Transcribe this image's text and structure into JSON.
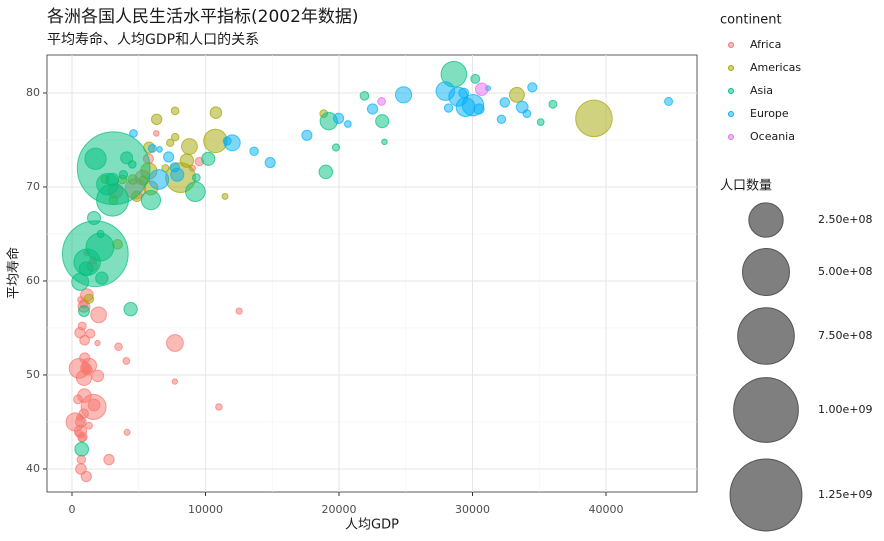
{
  "chart_data": {
    "type": "scatter",
    "title": "各洲各国人民生活水平指标(2002年数据)",
    "subtitle": "平均寿命、人均GDP和人口的关系",
    "x_label": "人均GDP",
    "y_label": "平均寿命",
    "xlim": [
      -1873,
      46816
    ],
    "ylim": [
      37.55,
      84.04
    ],
    "xticks": [
      0,
      10000,
      20000,
      30000,
      40000
    ],
    "yticks": [
      40,
      50,
      60,
      70,
      80
    ],
    "grid": true,
    "legend_title": "continent",
    "size_legend": {
      "title": "人口数量",
      "values": [
        {
          "value": 250000000,
          "label": "2.50e+08"
        },
        {
          "value": 500000000,
          "label": "5.00e+08"
        },
        {
          "value": 750000000,
          "label": "7.50e+08"
        },
        {
          "value": 1000000000,
          "label": "1.00e+09"
        },
        {
          "value": 1250000000,
          "label": "1.25e+09"
        }
      ]
    },
    "series": [
      {
        "name": "Africa",
        "color": "#F8766D",
        "x": [
          1616,
          4755,
          530,
          241,
          7711,
          1993,
          899,
          1288,
          3258,
          5288,
          928,
          1112,
          634,
          894,
          1934,
          1649,
          2773,
          1038,
          672,
          952,
          666,
          601,
          1071,
          1520,
          5723,
          1156,
          882,
          945,
          785,
          1373,
          446,
          699,
          9535,
          886,
          765,
          739,
          531,
          1579,
          4072,
          1275,
          11004,
          12522,
          9022,
          4128,
          7703,
          1908,
          660,
          6316,
          1076,
          3484,
          575
        ],
        "values": [
          46.6,
          69.8,
          50.7,
          45.0,
          53.4,
          56.4,
          49.7,
          51.0,
          69.6,
          71.0,
          47.8,
          58.5,
          44.0,
          57.3,
          49.9,
          46.8,
          41.0,
          50.7,
          40.0,
          51.8,
          45.0,
          54.5,
          39.2,
          61.6,
          73.0,
          50.5,
          45.9,
          53.7,
          43.4,
          54.4,
          47.4,
          41.0,
          72.7,
          57.6,
          55.2,
          43.3,
          43.8,
          62.2,
          51.5,
          44.6,
          46.6,
          56.8,
          72.0,
          43.9,
          49.3,
          53.4,
          58.0,
          75.7,
          63.0,
          53.0,
          45.5
        ],
        "sizes": [
          119901274,
          73312559,
          67946797,
          55379852,
          44433622,
          37090298,
          34593779,
          31386842,
          31167783,
          31287142,
          24739869,
          20550751,
          18473780,
          16473477,
          15929988,
          16252726,
          10866106,
          12251209,
          11926563,
          10580176,
          11824495,
          11140655,
          10595811,
          10870037,
          9770575,
          8835739,
          7753310,
          8807818,
          7852401,
          7026113,
          6071696,
          5359092,
          5368585,
          4977378,
          4414865,
          4048013,
          2814651,
          2828858,
          1972153,
          2046772,
          1630347,
          1299304,
          1200206,
          1130269,
          495627,
          447416,
          1457766,
          743981,
          614382,
          3328795,
          1332459
        ]
      },
      {
        "name": "Americas",
        "color": "#A3A500",
        "x": [
          39097,
          8131,
          10742,
          5755,
          8798,
          33329,
          5909,
          8605,
          10779,
          5773,
          4858,
          6341,
          3413,
          1270,
          4564,
          3099,
          5351,
          3784,
          2475,
          7723,
          18856,
          7727,
          7357,
          6995,
          11461
        ],
        "values": [
          77.3,
          71.0,
          74.9,
          71.7,
          74.3,
          79.8,
          69.9,
          72.8,
          77.9,
          74.2,
          69.0,
          77.2,
          63.9,
          58.1,
          70.8,
          68.6,
          70.7,
          70.8,
          70.8,
          78.1,
          77.8,
          75.3,
          74.7,
          72.0,
          69.0
        ],
        "sizes": [
          287675526,
          179914212,
          102479927,
          41008227,
          38331121,
          31902268,
          26769436,
          24287670,
          15497046,
          12921234,
          11178650,
          11226999,
          8445134,
          7607651,
          8650322,
          6677328,
          6353681,
          5884491,
          5146848,
          3834934,
          3859606,
          3363085,
          2990875,
          2664659,
          1101832
        ]
      },
      {
        "name": "Asia",
        "color": "#00BF7D",
        "x": [
          3119,
          1747,
          3034,
          28605,
          2093,
          1136,
          1764,
          2650,
          9241,
          5913,
          19234,
          611,
          727,
          1057,
          4391,
          10207,
          19014,
          23235,
          1647,
          3015,
          2235,
          4091,
          896,
          30209,
          21906,
          3845,
          9313,
          36023,
          35110,
          19775,
          23404,
          2140,
          4516
        ],
        "values": [
          72.0,
          62.9,
          68.6,
          82.0,
          63.6,
          62.0,
          73.0,
          70.3,
          69.5,
          68.6,
          77.0,
          59.9,
          42.1,
          61.3,
          57.0,
          73.0,
          71.6,
          77.0,
          66.7,
          70.8,
          60.3,
          73.1,
          56.8,
          81.5,
          79.7,
          71.3,
          71.0,
          78.8,
          76.9,
          74.2,
          74.8,
          65.0,
          72.4
        ],
        "sizes": [
          1280400000,
          1034172547,
          211060000,
          127065841,
          153403524,
          135656790,
          80908147,
          82995088,
          66907826,
          62806748,
          47969150,
          45598081,
          25268405,
          25873917,
          24001816,
          22662365,
          24501530,
          22454239,
          22215365,
          19576783,
          18701257,
          17155814,
          12926707,
          6762476,
          6029529,
          5307470,
          3677780,
          4197776,
          2111561,
          2713462,
          656397,
          2674234,
          3389578
        ]
      },
      {
        "name": "Europe",
        "color": "#00B0F6",
        "x": [
          30036,
          6508,
          28926,
          29479,
          27968,
          24835,
          12002,
          7885,
          33725,
          22514,
          30486,
          17596,
          19971,
          14843,
          7236,
          29342,
          32418,
          7697,
          34481,
          32166,
          28205,
          13639,
          44684,
          11628,
          34077,
          6019,
          4604,
          20660,
          6557,
          31163
        ],
        "values": [
          78.7,
          70.8,
          79.6,
          78.5,
          80.2,
          79.8,
          74.7,
          71.3,
          78.5,
          78.3,
          78.3,
          75.5,
          77.3,
          72.6,
          73.2,
          80.0,
          79.0,
          72.1,
          80.6,
          77.2,
          78.4,
          73.8,
          79.1,
          74.9,
          77.8,
          74.1,
          75.7,
          76.7,
          74.0,
          80.5
        ],
        "sizes": [
          82350671,
          67308928,
          59925035,
          59912431,
          57926999,
          40152517,
          38625976,
          22404337,
          16122830,
          10603863,
          10311970,
          10256295,
          10433867,
          10083313,
          10111559,
          8954175,
          8148312,
          7661799,
          7361757,
          5374693,
          5193039,
          5410052,
          4535591,
          4481020,
          3879155,
          4165416,
          3508512,
          2011497,
          720230,
          288030
        ]
      },
      {
        "name": "Oceania",
        "color": "#E76BF3",
        "x": [
          30688,
          23190
        ],
        "values": [
          80.4,
          79.1
        ],
        "sizes": [
          19546792,
          3908037
        ]
      }
    ]
  }
}
